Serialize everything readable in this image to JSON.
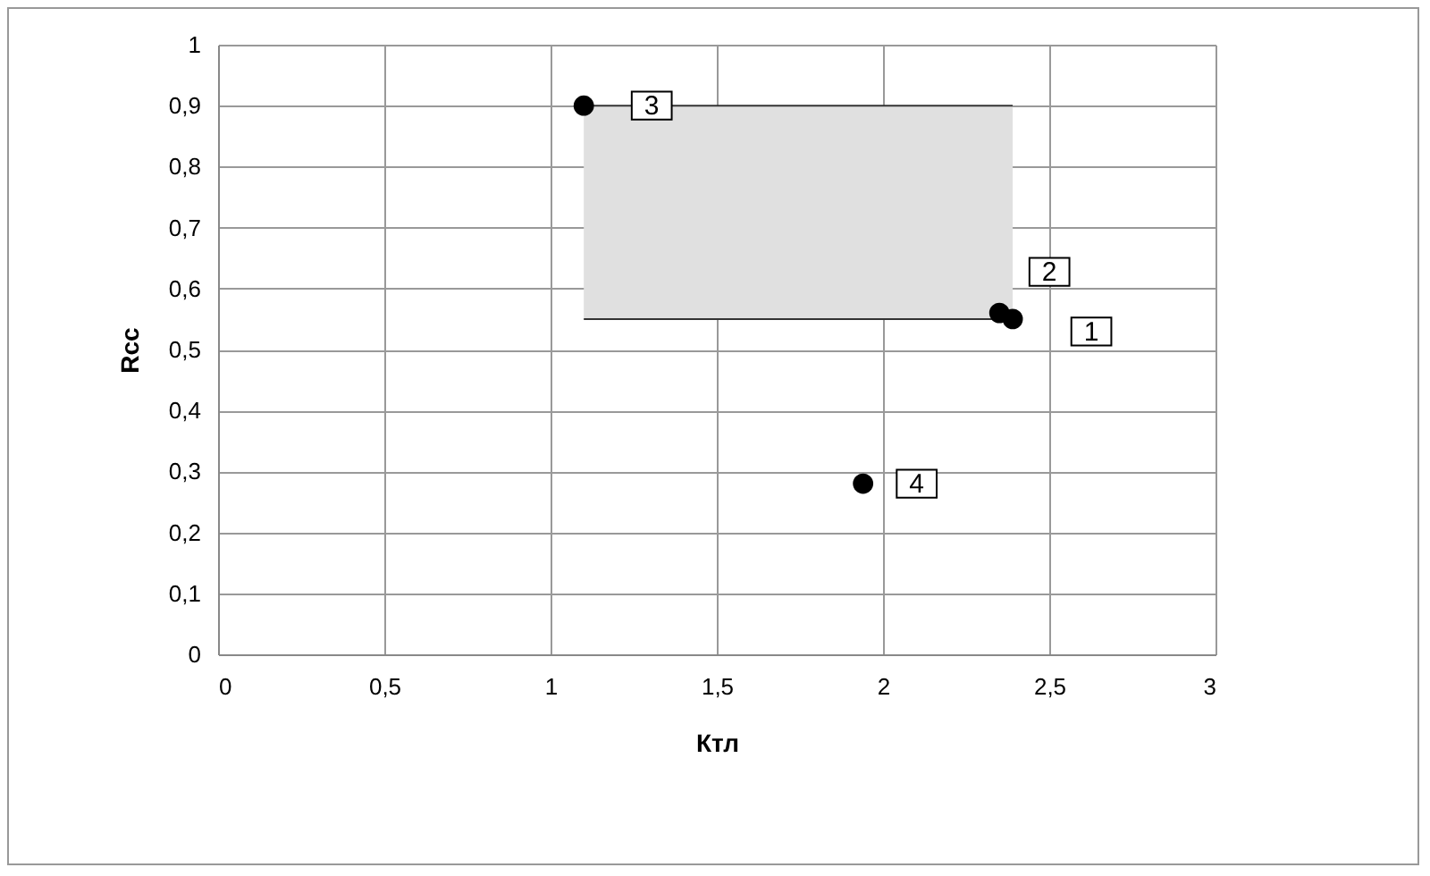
{
  "chart_data": {
    "type": "scatter",
    "xlabel": "Ктл",
    "ylabel": "Rсс",
    "series": [
      {
        "type": "line",
        "color": "#333333",
        "x": [
          1.1,
          2.39
        ],
        "values": [
          0.9,
          0.9
        ],
        "lower": [
          0.55,
          0.55
        ],
        "upper": [
          0.9,
          0.9
        ]
      },
      {
        "type": "line",
        "color": "#333333",
        "x": [
          1.1,
          2.39
        ],
        "values": [
          0.55,
          0.55
        ]
      },
      {
        "marker": "circle",
        "color": "#000000",
        "x": [
          2.39,
          2.35,
          1.1,
          1.94
        ],
        "values": [
          0.55,
          0.56,
          0.9,
          0.28
        ]
      }
    ],
    "annotations": [
      {
        "text": "1",
        "x": 2.39,
        "y": 0.55
      },
      {
        "text": "2",
        "x": 2.35,
        "y": 0.56
      },
      {
        "text": "3",
        "x": 1.1,
        "y": 0.9
      },
      {
        "text": "4",
        "x": 1.94,
        "y": 0.28
      }
    ],
    "xlim": [
      0,
      3
    ],
    "ylim": [
      0,
      1
    ],
    "xticks": [
      0,
      {
        "value": 0.5,
        "label": "0,5"
      },
      1,
      {
        "value": 1.5,
        "label": "1,5"
      },
      2,
      {
        "value": 2.5,
        "label": "2,5"
      },
      3
    ],
    "yticks": [
      0,
      {
        "value": 0.1,
        "label": "0,1"
      },
      {
        "value": 0.2,
        "label": "0,2"
      },
      {
        "value": 0.3,
        "label": "0,3"
      },
      {
        "value": 0.4,
        "label": "0,4"
      },
      {
        "value": 0.5,
        "label": "0,5"
      },
      {
        "value": 0.6,
        "label": "0,6"
      },
      {
        "value": 0.7,
        "label": "0,7"
      },
      {
        "value": 0.8,
        "label": "0,8"
      },
      {
        "value": 0.9,
        "label": "0,9"
      },
      1
    ],
    "grid": true
  }
}
